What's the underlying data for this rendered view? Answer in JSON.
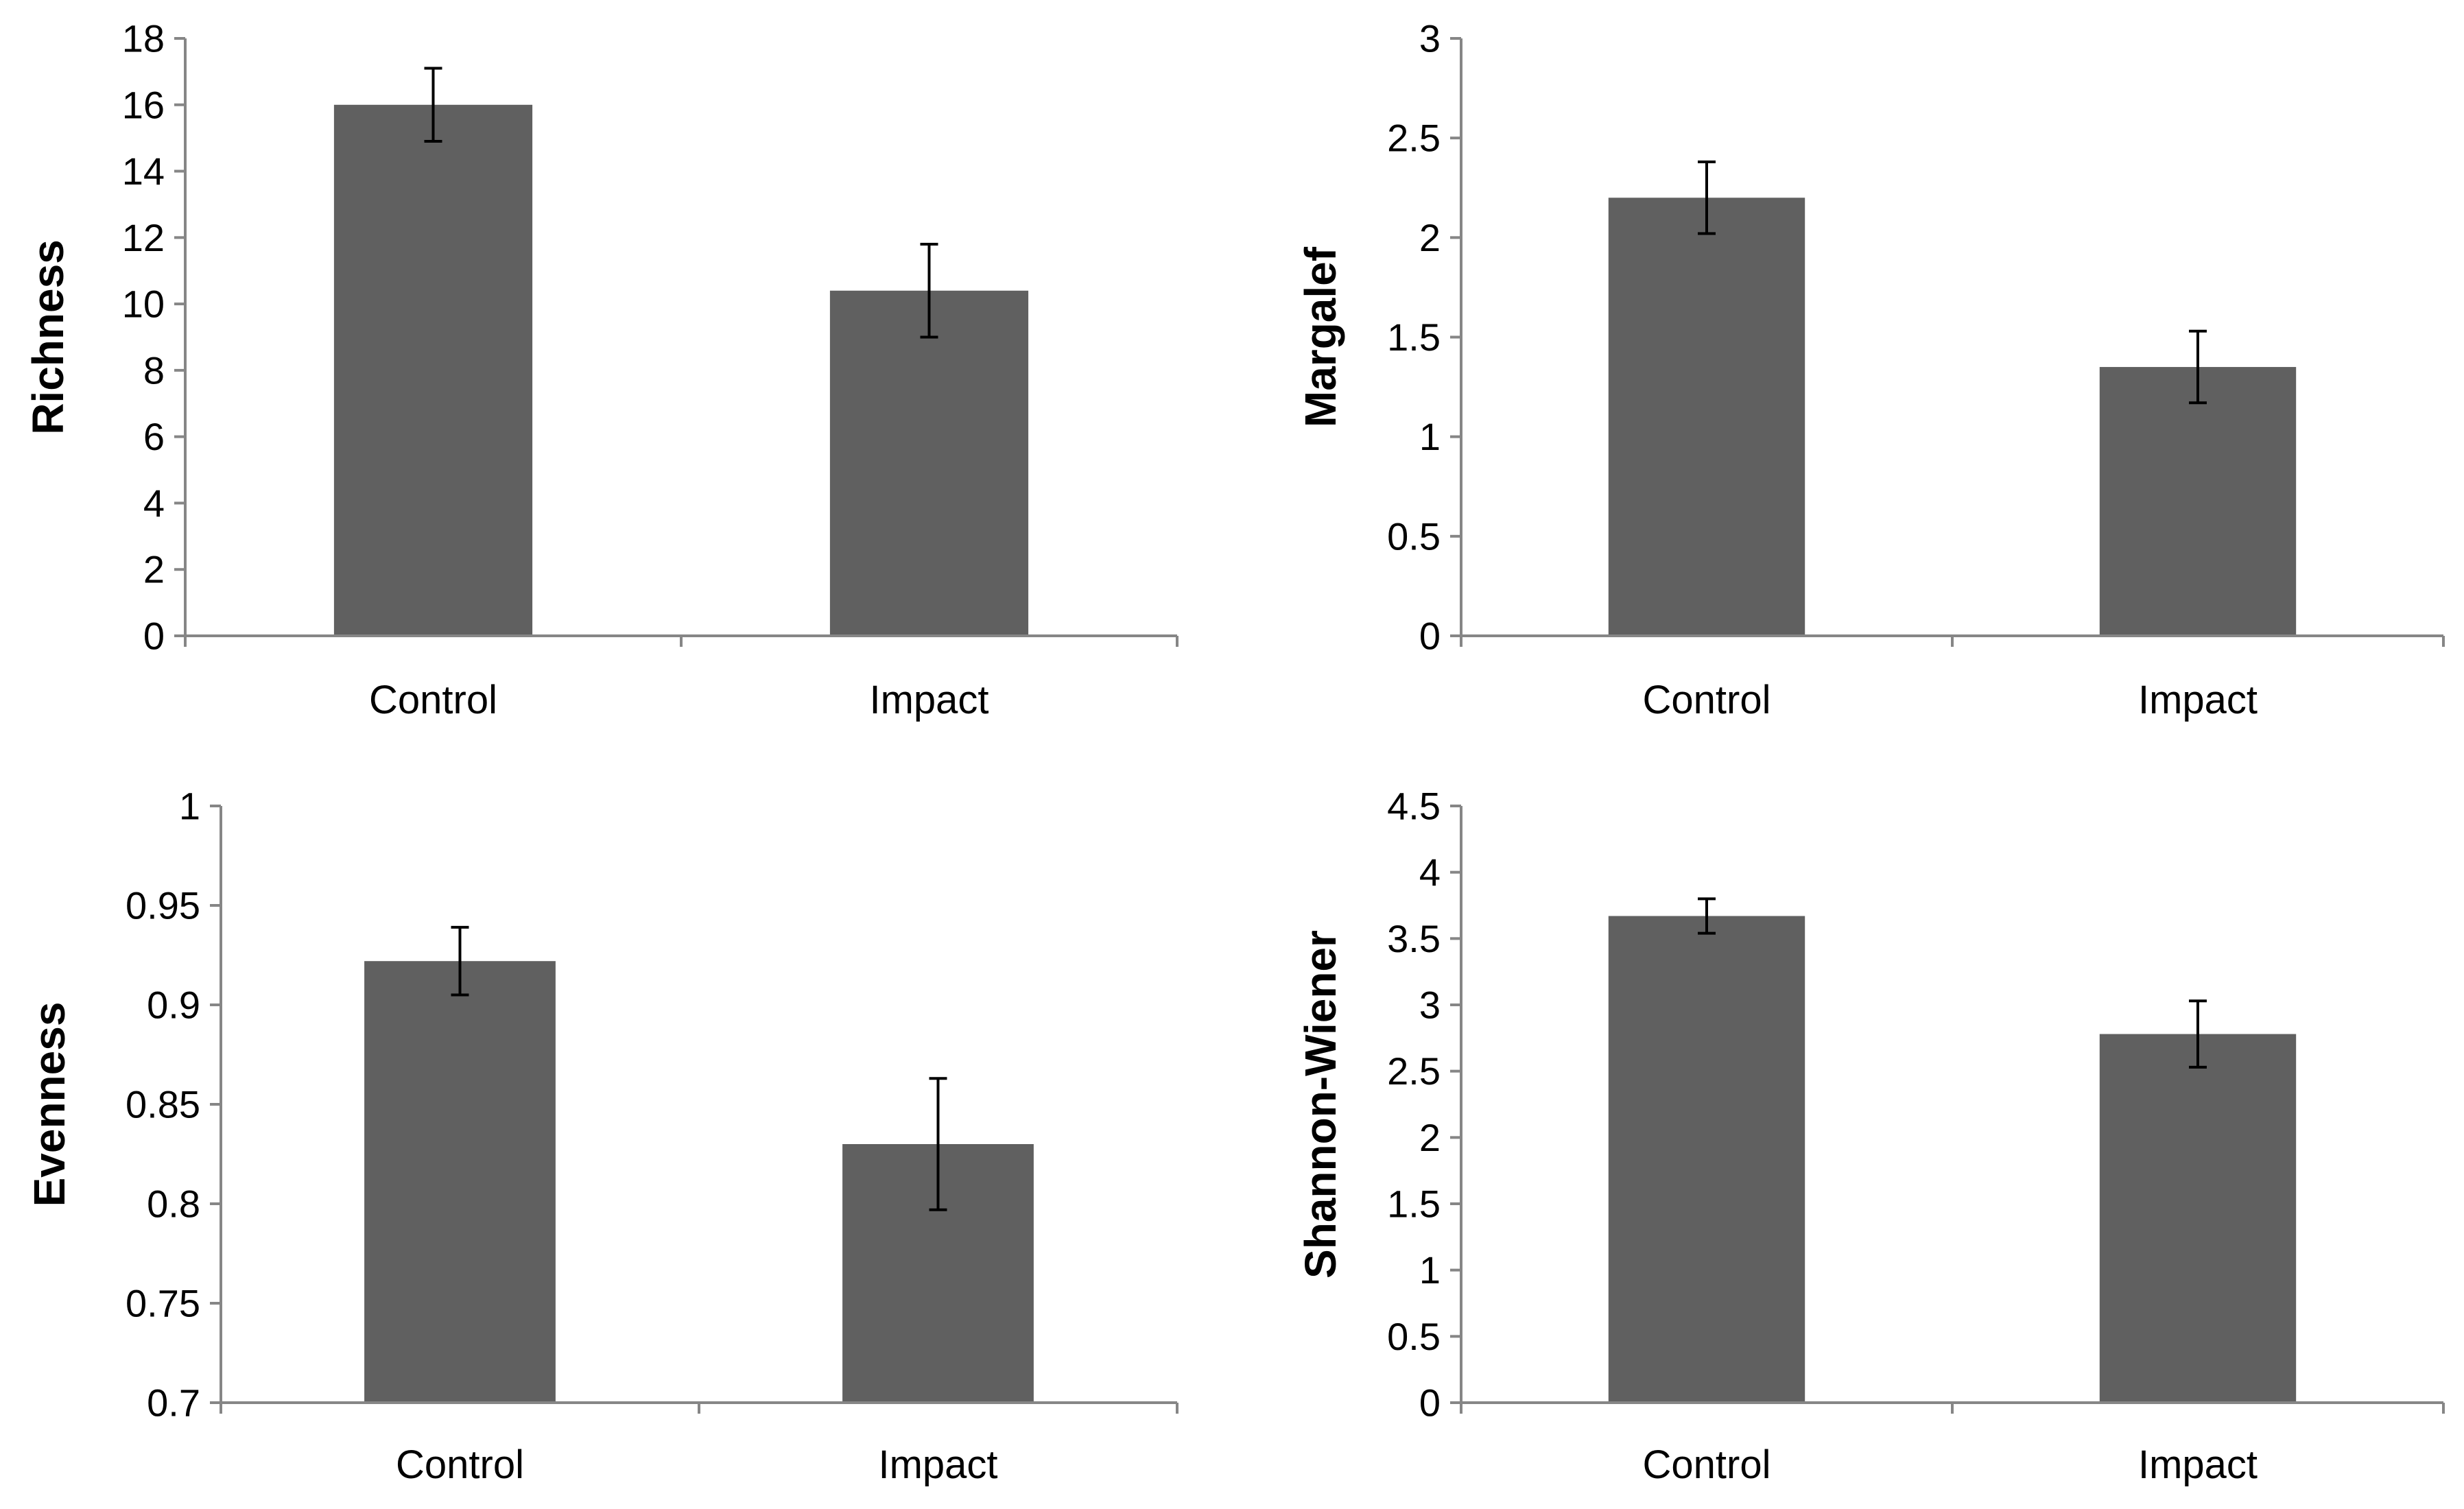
{
  "colors": {
    "bar": "#606060",
    "axis": "#868686",
    "error_bar": "#000000",
    "text": "#000000"
  },
  "chart_data": [
    {
      "type": "bar",
      "title": "",
      "xlabel": "",
      "ylabel": "Richness",
      "categories": [
        "Control",
        "Impact"
      ],
      "values": [
        16.0,
        10.4
      ],
      "errors": [
        1.1,
        1.4
      ],
      "ylim": [
        0,
        18
      ],
      "yticks": [
        "0",
        "2",
        "4",
        "6",
        "8",
        "10",
        "12",
        "14",
        "16",
        "18"
      ]
    },
    {
      "type": "bar",
      "title": "",
      "xlabel": "",
      "ylabel": "Margalef",
      "categories": [
        "Control",
        "Impact"
      ],
      "values": [
        2.2,
        1.35
      ],
      "errors": [
        0.18,
        0.18
      ],
      "ylim": [
        0,
        3
      ],
      "yticks": [
        "0",
        "0.5",
        "1",
        "1.5",
        "2",
        "2.5",
        "3"
      ]
    },
    {
      "type": "bar",
      "title": "",
      "xlabel": "",
      "ylabel": "Evenness",
      "categories": [
        "Control",
        "Impact"
      ],
      "values": [
        0.922,
        0.83
      ],
      "errors": [
        0.017,
        0.033
      ],
      "ylim": [
        0.7,
        1
      ],
      "yticks": [
        "0.7",
        "0.75",
        "0.8",
        "0.85",
        "0.9",
        "0.95",
        "1"
      ]
    },
    {
      "type": "bar",
      "title": "",
      "xlabel": "",
      "ylabel": "Shannon-Wiener",
      "categories": [
        "Control",
        "Impact"
      ],
      "values": [
        3.67,
        2.78
      ],
      "errors": [
        0.13,
        0.25
      ],
      "ylim": [
        0,
        4.5
      ],
      "yticks": [
        "0",
        "0.5",
        "1",
        "1.5",
        "2",
        "2.5",
        "3",
        "3.5",
        "4",
        "4.5"
      ]
    }
  ]
}
